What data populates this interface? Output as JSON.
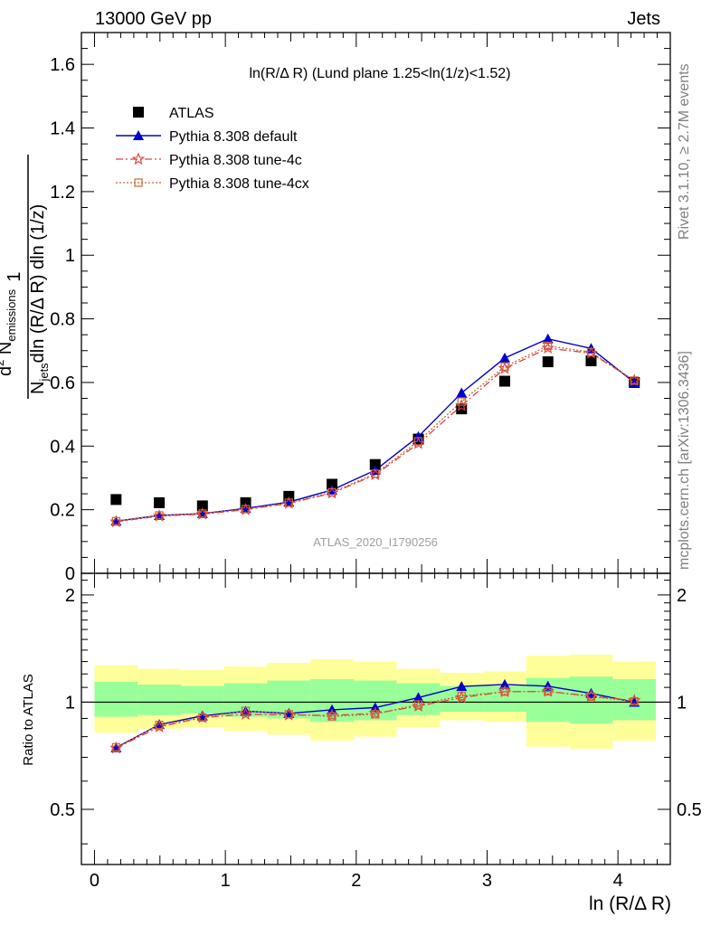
{
  "header": {
    "left": "13000 GeV pp",
    "right": "Jets"
  },
  "side": {
    "rivet": "Rivet 3.1.10, ≥ 2.7M events",
    "mcplots": "mcplots.cern.ch [arXiv:1306.3436]"
  },
  "watermark": "ATLAS_2020_I1790256",
  "colors": {
    "data": "#000000",
    "default": "#0000cc",
    "tune4c": "#e04040",
    "tune4cx": "#cc6633",
    "band_yellow": "#ffff99",
    "band_green": "#99ff99"
  },
  "chart_data": [
    {
      "type": "scatter",
      "title": "ln(R/Δ R) (Lund plane 1.25<ln(1/z)<1.52)",
      "ylabel": "1/N_jets d²N_emissions / dln(R/Δ R) dln(1/z)",
      "ylabel_parts": {
        "one": "1",
        "njets_n": "N",
        "njets_sub": "jets",
        "njets_rest": "dln (R/Δ R) dln (1/z)",
        "num_d": "d",
        "num_sup": "2",
        "num_n": " N",
        "num_sub": "emissions"
      },
      "ylim": [
        0,
        1.7
      ],
      "yticks": [
        0,
        0.2,
        0.4,
        0.6,
        0.8,
        1,
        1.2,
        1.4,
        1.6
      ],
      "ytick_labels": [
        "0",
        "0.2",
        "0.4",
        "0.6",
        "0.8",
        "1",
        "1.2",
        "1.4",
        "1.6"
      ],
      "xlim": [
        -0.1,
        4.4
      ],
      "x": [
        0.165,
        0.495,
        0.825,
        1.155,
        1.485,
        1.815,
        2.145,
        2.475,
        2.805,
        3.135,
        3.465,
        3.795,
        4.125
      ],
      "legend_position": "top-left",
      "grid": false,
      "series": [
        {
          "name": "ATLAS",
          "marker": "square",
          "values": [
            0.232,
            0.222,
            0.212,
            0.222,
            0.242,
            0.28,
            0.342,
            0.422,
            0.517,
            0.604,
            0.665,
            0.668,
            0.6
          ]
        },
        {
          "name": "Pythia 8.308 default",
          "marker": "triangle",
          "line": "solid",
          "values": [
            0.164,
            0.182,
            0.188,
            0.204,
            0.224,
            0.262,
            0.324,
            0.43,
            0.567,
            0.677,
            0.737,
            0.707,
            0.6
          ]
        },
        {
          "name": "Pythia 8.308 tune-4c",
          "marker": "star",
          "line": "dashdot",
          "values": [
            0.162,
            0.18,
            0.186,
            0.2,
            0.22,
            0.252,
            0.31,
            0.408,
            0.527,
            0.644,
            0.708,
            0.692,
            0.606
          ]
        },
        {
          "name": "Pythia 8.308 tune-4cx",
          "marker": "open-square",
          "line": "dotted",
          "values": [
            0.164,
            0.182,
            0.188,
            0.202,
            0.222,
            0.255,
            0.313,
            0.415,
            0.54,
            0.65,
            0.715,
            0.695,
            0.606
          ]
        }
      ]
    },
    {
      "type": "line",
      "ylabel": "Ratio to ATLAS",
      "xlabel": "ln (R/Δ R)",
      "yscale": "log",
      "ylim": [
        0.35,
        2.3
      ],
      "yticks": [
        0.5,
        1,
        2
      ],
      "ytick_labels": [
        "0.5",
        "1",
        "2"
      ],
      "xlim": [
        -0.1,
        4.4
      ],
      "xticks": [
        0,
        1,
        2,
        3,
        4
      ],
      "xtick_labels": [
        "0",
        "1",
        "2",
        "3",
        "4"
      ],
      "bin_edges": [
        0,
        0.33,
        0.66,
        0.99,
        1.32,
        1.65,
        1.98,
        2.31,
        2.64,
        2.97,
        3.3,
        3.63,
        3.96,
        4.29
      ],
      "band_yellow": [
        [
          0.82,
          1.27
        ],
        [
          0.84,
          1.24
        ],
        [
          0.85,
          1.23
        ],
        [
          0.83,
          1.26
        ],
        [
          0.81,
          1.29
        ],
        [
          0.78,
          1.32
        ],
        [
          0.8,
          1.3
        ],
        [
          0.85,
          1.24
        ],
        [
          0.89,
          1.21
        ],
        [
          0.88,
          1.22
        ],
        [
          0.75,
          1.35
        ],
        [
          0.74,
          1.36
        ],
        [
          0.78,
          1.3
        ]
      ],
      "band_green": [
        [
          0.91,
          1.14
        ],
        [
          0.92,
          1.12
        ],
        [
          0.93,
          1.11
        ],
        [
          0.91,
          1.13
        ],
        [
          0.9,
          1.15
        ],
        [
          0.88,
          1.16
        ],
        [
          0.89,
          1.15
        ],
        [
          0.92,
          1.13
        ],
        [
          0.94,
          1.11
        ],
        [
          0.94,
          1.11
        ],
        [
          0.88,
          1.17
        ],
        [
          0.87,
          1.18
        ],
        [
          0.89,
          1.16
        ]
      ],
      "x": [
        0.165,
        0.495,
        0.825,
        1.155,
        1.485,
        1.815,
        2.145,
        2.475,
        2.805,
        3.135,
        3.465,
        3.795,
        4.125
      ],
      "series": [
        {
          "name": "Pythia 8.308 default",
          "marker": "triangle",
          "line": "solid",
          "values": [
            0.745,
            0.865,
            0.915,
            0.943,
            0.93,
            0.952,
            0.965,
            1.03,
            1.107,
            1.121,
            1.109,
            1.058,
            1.0
          ]
        },
        {
          "name": "Pythia 8.308 tune-4c",
          "marker": "star",
          "line": "dashdot",
          "values": [
            0.743,
            0.852,
            0.905,
            0.925,
            0.92,
            0.918,
            0.93,
            0.975,
            1.03,
            1.07,
            1.072,
            1.04,
            1.01
          ]
        },
        {
          "name": "Pythia 8.308 tune-4cx",
          "marker": "open-square",
          "line": "dotted",
          "values": [
            0.747,
            0.863,
            0.905,
            0.945,
            0.925,
            0.912,
            0.925,
            0.985,
            1.04,
            1.07,
            1.072,
            1.036,
            1.005
          ]
        }
      ]
    }
  ]
}
